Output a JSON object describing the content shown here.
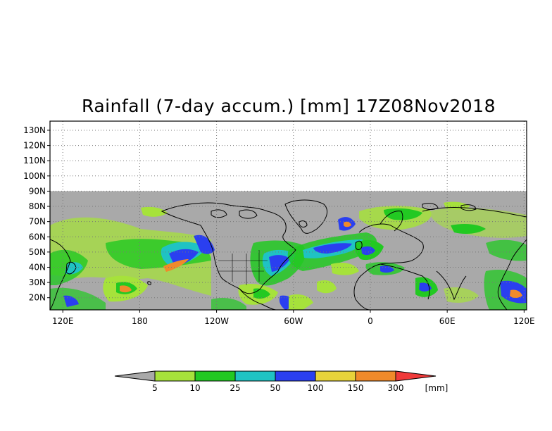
{
  "title": "Rainfall (7-day accum.) [mm] 17Z08Nov2018",
  "map": {
    "lat_labels": [
      "130N",
      "120N",
      "110N",
      "100N",
      "90N",
      "80N",
      "70N",
      "60N",
      "50N",
      "40N",
      "30N",
      "20N"
    ],
    "lon_labels": [
      "120E",
      "180",
      "120W",
      "60W",
      "0",
      "60E",
      "120E"
    ],
    "lat_range": [
      12,
      136
    ],
    "lon_range": [
      110,
      482
    ],
    "gridlines": true,
    "no_data_above_lat": 90,
    "background_color": "#a9a9a9"
  },
  "legend": {
    "bins": [
      {
        "label": "",
        "color": "#a9a9a9"
      },
      {
        "label": "5",
        "color": "#a6e23b"
      },
      {
        "label": "10",
        "color": "#22c922"
      },
      {
        "label": "25",
        "color": "#1fc3c3"
      },
      {
        "label": "50",
        "color": "#2a3ff0"
      },
      {
        "label": "100",
        "color": "#e8d33a"
      },
      {
        "label": "150",
        "color": "#f08a2a"
      },
      {
        "label": "300",
        "color": "#f03a3a"
      }
    ],
    "unit": "[mm]"
  },
  "colors": {
    "land_bg": "#a9a9a9",
    "coast": "#000000"
  }
}
